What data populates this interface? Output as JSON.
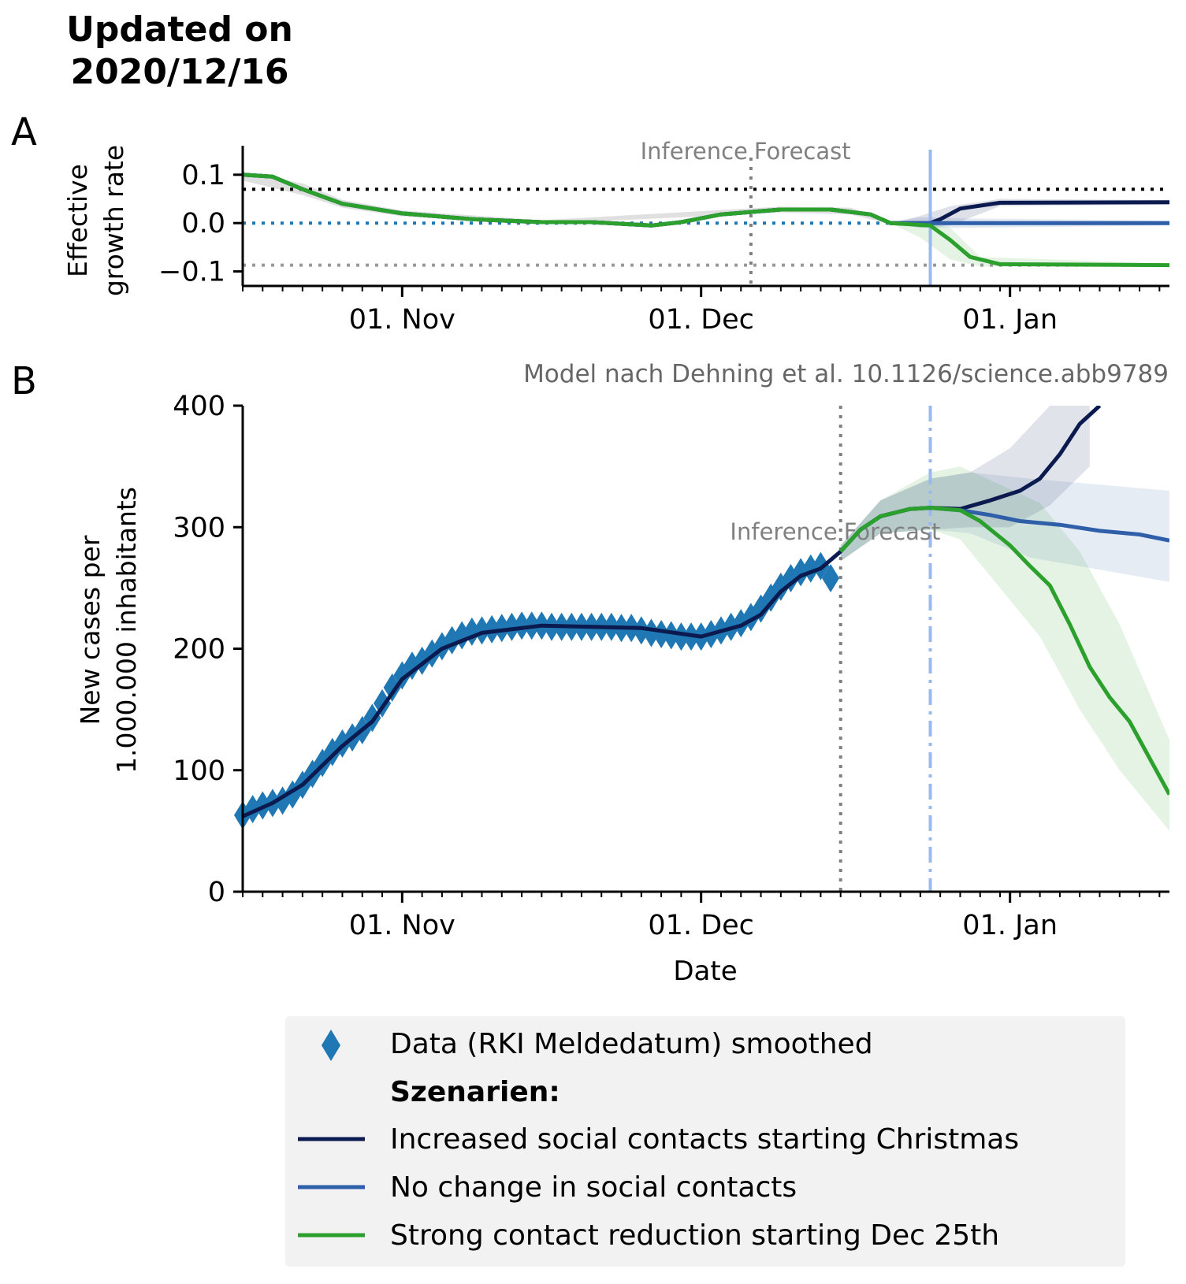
{
  "header": {
    "title_line1": "Updated on",
    "title_line2": "2020/12/16"
  },
  "colors": {
    "axis": "#000000",
    "data_marker": "#1f77b4",
    "increased": "#0b1a4f",
    "nochange": "#2f5fa8",
    "reduction": "#2ca02c",
    "inference_line": "#808080",
    "scenario_start": "#99b9f0",
    "legend_bg": "#f2f2f2"
  },
  "chart_data": [
    {
      "panel": "A",
      "type": "line",
      "ylabel_line1": "Effective",
      "ylabel_line2": "growth rate",
      "x_axis": {
        "start": "2020-10-16",
        "end": "2021-01-17",
        "tick_labels": [
          "01. Nov",
          "01. Dec",
          "01. Jan"
        ],
        "tick_dates": [
          "2020-11-01",
          "2020-12-01",
          "2021-01-01"
        ]
      },
      "ylim": [
        -0.13,
        0.16
      ],
      "yticks": [
        0.1,
        0.0,
        -0.1
      ],
      "ytick_labels": [
        "0.1",
        "0.0",
        "−0.1"
      ],
      "annotation_left": "Inference",
      "annotation_right": "Forecast",
      "inference_end": "2020-12-06",
      "scenario_start": "2020-12-24",
      "reference_lines": [
        {
          "name": "upper",
          "y": 0.07,
          "color": "#000000"
        },
        {
          "name": "zero",
          "y": 0.0,
          "color": "#1f77b4"
        },
        {
          "name": "lower",
          "y": -0.087,
          "color": "#999999"
        }
      ],
      "series": [
        {
          "key": "increased",
          "points": [
            [
              "2020-10-16",
              0.1
            ],
            [
              "2020-10-19",
              0.096
            ],
            [
              "2020-10-22",
              0.07
            ],
            [
              "2020-10-26",
              0.04
            ],
            [
              "2020-11-01",
              0.02
            ],
            [
              "2020-11-08",
              0.008
            ],
            [
              "2020-11-15",
              0.002
            ],
            [
              "2020-11-20",
              0.002
            ],
            [
              "2020-11-26",
              -0.005
            ],
            [
              "2020-11-29",
              0.002
            ],
            [
              "2020-12-03",
              0.018
            ],
            [
              "2020-12-09",
              0.028
            ],
            [
              "2020-12-14",
              0.028
            ],
            [
              "2020-12-18",
              0.018
            ],
            [
              "2020-12-20",
              0.0
            ],
            [
              "2020-12-24",
              0.0
            ],
            [
              "2020-12-25",
              0.008
            ],
            [
              "2020-12-27",
              0.03
            ],
            [
              "2020-12-31",
              0.042
            ],
            [
              "2021-01-17",
              0.043
            ]
          ],
          "band": [
            [
              "2020-12-20",
              0.0,
              0.0
            ],
            [
              "2020-12-23",
              -0.01,
              0.015
            ],
            [
              "2020-12-26",
              -0.005,
              0.035
            ],
            [
              "2020-12-31",
              0.035,
              0.05
            ],
            [
              "2021-01-17",
              0.038,
              0.048
            ]
          ]
        },
        {
          "key": "nochange",
          "points": [
            [
              "2020-10-16",
              0.1
            ],
            [
              "2020-10-19",
              0.096
            ],
            [
              "2020-10-22",
              0.07
            ],
            [
              "2020-10-26",
              0.04
            ],
            [
              "2020-11-01",
              0.02
            ],
            [
              "2020-11-08",
              0.008
            ],
            [
              "2020-11-15",
              0.002
            ],
            [
              "2020-11-20",
              0.002
            ],
            [
              "2020-11-26",
              -0.005
            ],
            [
              "2020-11-29",
              0.002
            ],
            [
              "2020-12-03",
              0.018
            ],
            [
              "2020-12-09",
              0.028
            ],
            [
              "2020-12-14",
              0.028
            ],
            [
              "2020-12-18",
              0.018
            ],
            [
              "2020-12-20",
              0.0
            ],
            [
              "2020-12-24",
              0.0
            ],
            [
              "2021-01-17",
              0.0
            ]
          ],
          "band": [
            [
              "2020-12-20",
              0.0,
              0.0
            ],
            [
              "2020-12-23",
              -0.01,
              0.012
            ],
            [
              "2020-12-27",
              -0.01,
              0.01
            ],
            [
              "2021-01-17",
              -0.005,
              0.005
            ]
          ]
        },
        {
          "key": "reduction",
          "points": [
            [
              "2020-10-16",
              0.1
            ],
            [
              "2020-10-19",
              0.096
            ],
            [
              "2020-10-22",
              0.07
            ],
            [
              "2020-10-26",
              0.04
            ],
            [
              "2020-11-01",
              0.02
            ],
            [
              "2020-11-08",
              0.008
            ],
            [
              "2020-11-15",
              0.002
            ],
            [
              "2020-11-20",
              0.002
            ],
            [
              "2020-11-26",
              -0.005
            ],
            [
              "2020-11-29",
              0.002
            ],
            [
              "2020-12-03",
              0.018
            ],
            [
              "2020-12-09",
              0.028
            ],
            [
              "2020-12-14",
              0.028
            ],
            [
              "2020-12-18",
              0.018
            ],
            [
              "2020-12-20",
              0.0
            ],
            [
              "2020-12-24",
              -0.005
            ],
            [
              "2020-12-26",
              -0.035
            ],
            [
              "2020-12-28",
              -0.07
            ],
            [
              "2020-12-31",
              -0.085
            ],
            [
              "2021-01-17",
              -0.087
            ]
          ],
          "band": [
            [
              "2020-12-20",
              0.0,
              0.0
            ],
            [
              "2020-12-23",
              -0.03,
              0.005
            ],
            [
              "2020-12-26",
              -0.075,
              -0.01
            ],
            [
              "2020-12-29",
              -0.09,
              -0.07
            ],
            [
              "2021-01-17",
              -0.09,
              -0.084
            ]
          ]
        }
      ],
      "uncertainty_pre": [
        [
          "2020-10-16",
          0.088,
          0.106
        ],
        [
          "2020-10-22",
          0.058,
          0.082
        ],
        [
          "2020-10-26",
          0.032,
          0.048
        ],
        [
          "2020-11-01",
          0.014,
          0.026
        ],
        [
          "2020-11-15",
          -0.002,
          0.006
        ],
        [
          "2020-12-09",
          0.022,
          0.034
        ],
        [
          "2020-12-16",
          0.018,
          0.032
        ],
        [
          "2020-12-20",
          -0.002,
          0.004
        ]
      ]
    },
    {
      "panel": "B",
      "type": "line",
      "xlabel": "Date",
      "ylabel_line1": "New cases per",
      "ylabel_line2": "1.000.000 inhabitants",
      "x_axis": {
        "start": "2020-10-16",
        "end": "2021-01-17",
        "tick_labels": [
          "01. Nov",
          "01. Dec",
          "01. Jan"
        ],
        "tick_dates": [
          "2020-11-01",
          "2020-12-01",
          "2021-01-01"
        ]
      },
      "ylim": [
        0,
        400
      ],
      "yticks": [
        0,
        100,
        200,
        300,
        400
      ],
      "annotation_left": "Inference",
      "annotation_right": "Forecast",
      "source_note": "Model nach Dehning et al. 10.1126/science.abb9789",
      "inference_end": "2020-12-15",
      "scenario_start": "2020-12-24",
      "data_points": [
        [
          "2020-10-16",
          63
        ],
        [
          "2020-10-17",
          68
        ],
        [
          "2020-10-18",
          71
        ],
        [
          "2020-10-19",
          73
        ],
        [
          "2020-10-20",
          75
        ],
        [
          "2020-10-21",
          80
        ],
        [
          "2020-10-22",
          88
        ],
        [
          "2020-10-23",
          97
        ],
        [
          "2020-10-24",
          106
        ],
        [
          "2020-10-25",
          115
        ],
        [
          "2020-10-26",
          122
        ],
        [
          "2020-10-27",
          127
        ],
        [
          "2020-10-28",
          133
        ],
        [
          "2020-10-29",
          143
        ],
        [
          "2020-10-30",
          155
        ],
        [
          "2020-10-31",
          168
        ],
        [
          "2020-11-01",
          178
        ],
        [
          "2020-11-02",
          186
        ],
        [
          "2020-11-03",
          190
        ],
        [
          "2020-11-04",
          196
        ],
        [
          "2020-11-05",
          202
        ],
        [
          "2020-11-06",
          207
        ],
        [
          "2020-11-07",
          211
        ],
        [
          "2020-11-08",
          214
        ],
        [
          "2020-11-09",
          215
        ],
        [
          "2020-11-10",
          216
        ],
        [
          "2020-11-11",
          217
        ],
        [
          "2020-11-12",
          218
        ],
        [
          "2020-11-13",
          219
        ],
        [
          "2020-11-14",
          219
        ],
        [
          "2020-11-15",
          219
        ],
        [
          "2020-11-16",
          218
        ],
        [
          "2020-11-17",
          218
        ],
        [
          "2020-11-18",
          218
        ],
        [
          "2020-11-19",
          218
        ],
        [
          "2020-11-20",
          218
        ],
        [
          "2020-11-21",
          218
        ],
        [
          "2020-11-22",
          218
        ],
        [
          "2020-11-23",
          217
        ],
        [
          "2020-11-24",
          217
        ],
        [
          "2020-11-25",
          215
        ],
        [
          "2020-11-26",
          213
        ],
        [
          "2020-11-27",
          212
        ],
        [
          "2020-11-28",
          211
        ],
        [
          "2020-11-29",
          210
        ],
        [
          "2020-11-30",
          210
        ],
        [
          "2020-12-01",
          210
        ],
        [
          "2020-12-02",
          212
        ],
        [
          "2020-12-03",
          215
        ],
        [
          "2020-12-04",
          218
        ],
        [
          "2020-12-05",
          221
        ],
        [
          "2020-12-06",
          226
        ],
        [
          "2020-12-07",
          233
        ],
        [
          "2020-12-08",
          242
        ],
        [
          "2020-12-09",
          251
        ],
        [
          "2020-12-10",
          258
        ],
        [
          "2020-12-11",
          263
        ],
        [
          "2020-12-12",
          266
        ],
        [
          "2020-12-13",
          268
        ],
        [
          "2020-12-14",
          258
        ]
      ],
      "series": [
        {
          "key": "increased",
          "points": [
            [
              "2020-10-16",
              62
            ],
            [
              "2020-10-19",
              73
            ],
            [
              "2020-10-22",
              88
            ],
            [
              "2020-10-26",
              120
            ],
            [
              "2020-10-29",
              140
            ],
            [
              "2020-11-01",
              175
            ],
            [
              "2020-11-05",
              200
            ],
            [
              "2020-11-09",
              213
            ],
            [
              "2020-11-15",
              219
            ],
            [
              "2020-11-25",
              217
            ],
            [
              "2020-12-01",
              210
            ],
            [
              "2020-12-05",
              219
            ],
            [
              "2020-12-07",
              228
            ],
            [
              "2020-12-09",
              247
            ],
            [
              "2020-12-11",
              260
            ],
            [
              "2020-12-13",
              266
            ],
            [
              "2020-12-15",
              280
            ],
            [
              "2020-12-17",
              298
            ],
            [
              "2020-12-19",
              309
            ],
            [
              "2020-12-22",
              315
            ],
            [
              "2020-12-24",
              316
            ],
            [
              "2020-12-27",
              315
            ],
            [
              "2020-12-30",
              322
            ],
            [
              "2021-01-02",
              330
            ],
            [
              "2021-01-04",
              340
            ],
            [
              "2021-01-06",
              360
            ],
            [
              "2021-01-08",
              385
            ],
            [
              "2021-01-10",
              400
            ]
          ],
          "band": [
            [
              "2020-12-15",
              272,
              285
            ],
            [
              "2020-12-19",
              295,
              322
            ],
            [
              "2020-12-24",
              298,
              340
            ],
            [
              "2020-12-28",
              300,
              345
            ],
            [
              "2021-01-01",
              300,
              365
            ],
            [
              "2021-01-05",
              318,
              400
            ],
            [
              "2021-01-09",
              350,
              400
            ]
          ]
        },
        {
          "key": "nochange",
          "points": [
            [
              "2020-12-15",
              280
            ],
            [
              "2020-12-17",
              298
            ],
            [
              "2020-12-19",
              309
            ],
            [
              "2020-12-22",
              315
            ],
            [
              "2020-12-24",
              316
            ],
            [
              "2020-12-27",
              314
            ],
            [
              "2020-12-30",
              310
            ],
            [
              "2021-01-02",
              305
            ],
            [
              "2021-01-06",
              302
            ],
            [
              "2021-01-10",
              297
            ],
            [
              "2021-01-14",
              294
            ],
            [
              "2021-01-17",
              289
            ]
          ],
          "band": [
            [
              "2020-12-15",
              272,
              285
            ],
            [
              "2020-12-19",
              295,
              322
            ],
            [
              "2020-12-24",
              298,
              340
            ],
            [
              "2020-12-28",
              295,
              345
            ],
            [
              "2021-01-03",
              275,
              340
            ],
            [
              "2021-01-10",
              265,
              335
            ],
            [
              "2021-01-17",
              255,
              330
            ]
          ]
        },
        {
          "key": "reduction",
          "points": [
            [
              "2020-12-15",
              280
            ],
            [
              "2020-12-17",
              298
            ],
            [
              "2020-12-19",
              309
            ],
            [
              "2020-12-22",
              315
            ],
            [
              "2020-12-24",
              316
            ],
            [
              "2020-12-27",
              314
            ],
            [
              "2020-12-29",
              305
            ],
            [
              "2021-01-01",
              285
            ],
            [
              "2021-01-03",
              268
            ],
            [
              "2021-01-05",
              252
            ],
            [
              "2021-01-07",
              220
            ],
            [
              "2021-01-09",
              185
            ],
            [
              "2021-01-11",
              160
            ],
            [
              "2021-01-13",
              140
            ],
            [
              "2021-01-15",
              110
            ],
            [
              "2021-01-17",
              80
            ]
          ],
          "band": [
            [
              "2020-12-15",
              272,
              285
            ],
            [
              "2020-12-19",
              295,
              322
            ],
            [
              "2020-12-24",
              298,
              345
            ],
            [
              "2020-12-27",
              290,
              350
            ],
            [
              "2020-12-31",
              250,
              335
            ],
            [
              "2021-01-04",
              210,
              320
            ],
            [
              "2021-01-08",
              150,
              280
            ],
            [
              "2021-01-12",
              100,
              220
            ],
            [
              "2021-01-17",
              50,
              125
            ]
          ]
        }
      ]
    }
  ],
  "legend": {
    "data_label": "Data (RKI Meldedatum) smoothed",
    "heading": "Szenarien:",
    "items": [
      {
        "key": "increased",
        "label": "Increased social contacts starting Christmas"
      },
      {
        "key": "nochange",
        "label": "No change in social contacts"
      },
      {
        "key": "reduction",
        "label": "Strong contact reduction starting Dec 25th"
      }
    ]
  }
}
